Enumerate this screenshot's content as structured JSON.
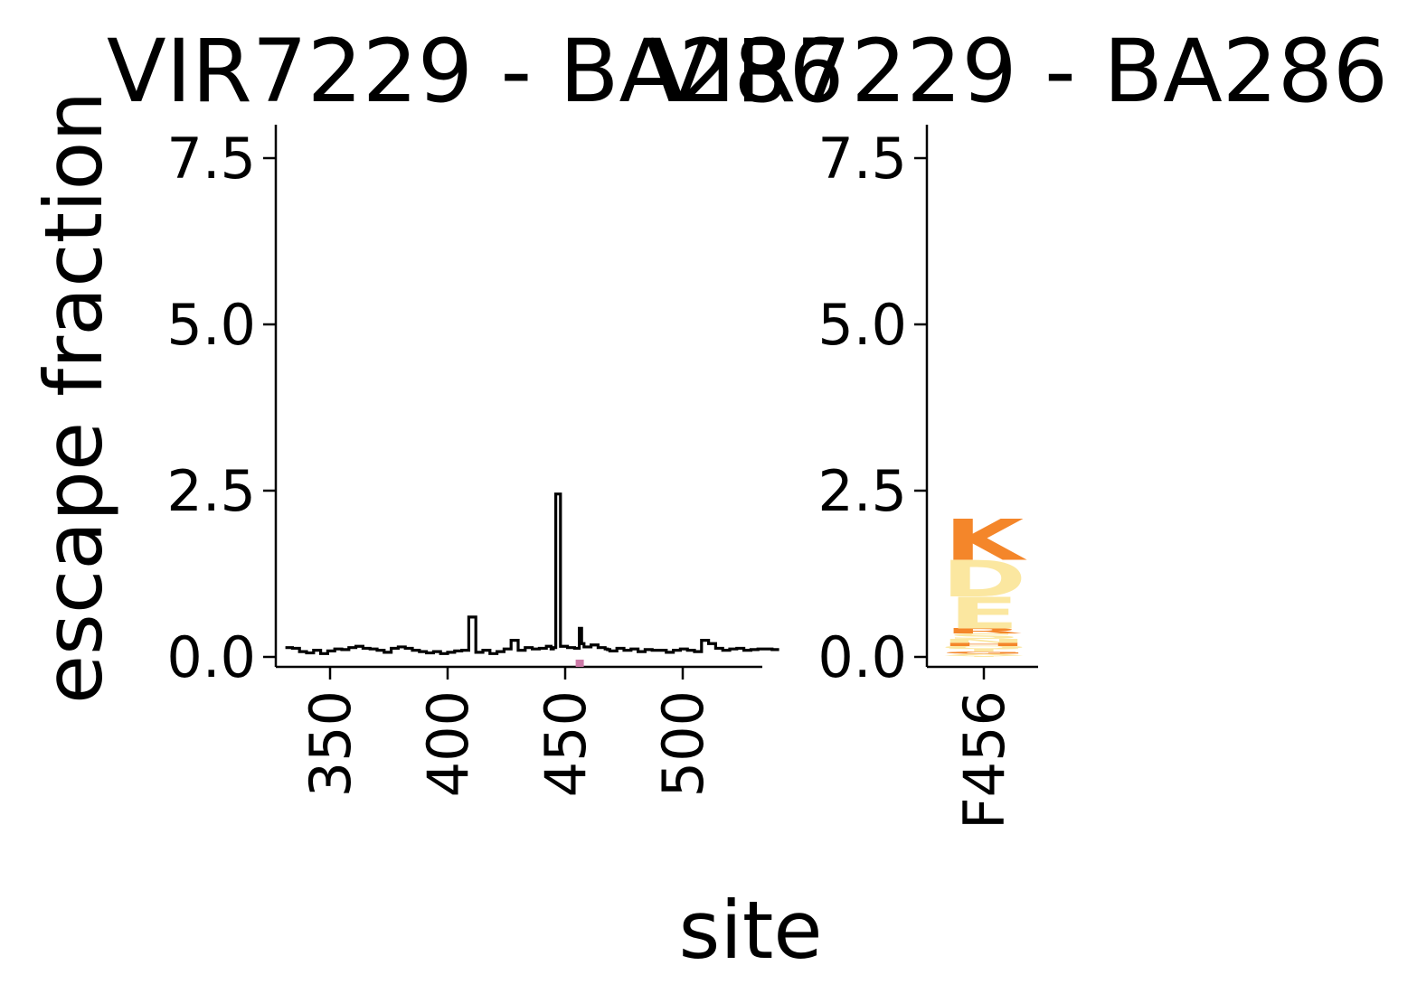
{
  "chart_data": [
    {
      "type": "line",
      "title": "VIR7229 - BA286",
      "xlabel": "site",
      "ylabel": "escape fraction",
      "xlim": [
        331,
        541
      ],
      "ylim": [
        -0.15,
        8.0
      ],
      "xticks": [
        350,
        400,
        450,
        500
      ],
      "yticks": [
        0.0,
        2.5,
        5.0,
        7.5
      ],
      "ytick_labels": [
        "0.0",
        "2.5",
        "5.0",
        "7.5"
      ],
      "grid": false,
      "series": [
        {
          "color": "#000000",
          "x": [
            331,
            334,
            337,
            340,
            343,
            346,
            349,
            352,
            355,
            358,
            361,
            364,
            367,
            370,
            373,
            376,
            379,
            382,
            385,
            388,
            391,
            394,
            397,
            400,
            403,
            406,
            409,
            412,
            415,
            418,
            421,
            424,
            427,
            430,
            433,
            436,
            439,
            442,
            444,
            445,
            446,
            448,
            451,
            454,
            456,
            457,
            458,
            461,
            464,
            467,
            468,
            469,
            472,
            475,
            478,
            481,
            484,
            487,
            490,
            493,
            496,
            499,
            502,
            505,
            508,
            511,
            514,
            517,
            520,
            523,
            526,
            529,
            532,
            535,
            538
          ],
          "values": [
            0.14,
            0.13,
            0.08,
            0.06,
            0.1,
            0.05,
            0.09,
            0.12,
            0.11,
            0.14,
            0.16,
            0.13,
            0.12,
            0.1,
            0.07,
            0.13,
            0.15,
            0.13,
            0.1,
            0.08,
            0.06,
            0.08,
            0.05,
            0.07,
            0.09,
            0.1,
            0.6,
            0.07,
            0.1,
            0.05,
            0.08,
            0.12,
            0.25,
            0.1,
            0.14,
            0.12,
            0.13,
            0.16,
            0.12,
            0.14,
            2.45,
            0.16,
            0.14,
            0.13,
            0.43,
            0.2,
            0.15,
            0.18,
            0.14,
            0.12,
            0.11,
            0.09,
            0.13,
            0.1,
            0.12,
            0.08,
            0.11,
            0.1,
            0.1,
            0.07,
            0.1,
            0.12,
            0.1,
            0.08,
            0.25,
            0.2,
            0.13,
            0.1,
            0.12,
            0.13,
            0.1,
            0.11,
            0.12,
            0.12,
            0.11
          ],
          "markers": [
            {
              "x": 456,
              "color": "#cc79a7"
            }
          ]
        }
      ]
    },
    {
      "type": "bar",
      "title": "VIR7229 - BA286",
      "xlabel": "site",
      "ylim": [
        -0.15,
        8.0
      ],
      "yticks": [
        0.0,
        2.5,
        5.0,
        7.5
      ],
      "ytick_labels": [
        "0.0",
        "2.5",
        "5.0",
        "7.5"
      ],
      "categories": [
        "F456"
      ],
      "grid": false,
      "logo_stack": [
        {
          "letter": "K",
          "value": 0.62,
          "color": "#f4862a"
        },
        {
          "letter": "D",
          "value": 0.55,
          "color": "#fbe7a0"
        },
        {
          "letter": "E",
          "value": 0.48,
          "color": "#fbe7a0"
        },
        {
          "letter": "R",
          "value": 0.08,
          "color": "#f4862a"
        },
        {
          "letter": "S",
          "value": 0.08,
          "color": "#fbe7a0"
        },
        {
          "letter": "N",
          "value": 0.06,
          "color": "#fbe7a0"
        },
        {
          "letter": "H",
          "value": 0.05,
          "color": "#f4862a"
        },
        {
          "letter": "Q",
          "value": 0.04,
          "color": "#fbe7a0"
        },
        {
          "letter": "T",
          "value": 0.04,
          "color": "#fbe7a0"
        },
        {
          "letter": "G",
          "value": 0.03,
          "color": "#f4862a"
        },
        {
          "letter": "A",
          "value": 0.03,
          "color": "#fbe7a0"
        },
        {
          "letter": "Y",
          "value": 0.02,
          "color": "#fbe7a0"
        }
      ]
    }
  ]
}
